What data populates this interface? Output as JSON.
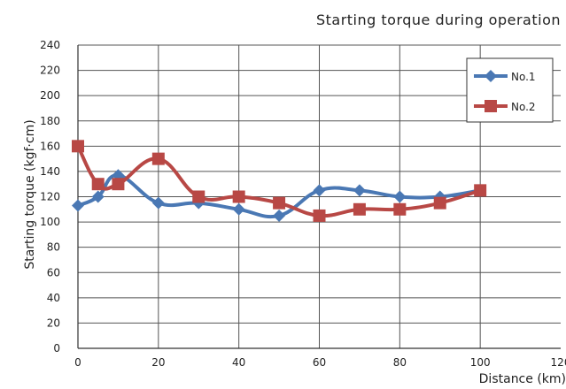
{
  "chart_data": {
    "type": "line",
    "title": "Starting torque during operation",
    "xlabel": "Distance (km)",
    "ylabel": "Starting torque (kgf·cm)",
    "xlim": [
      0,
      120
    ],
    "ylim": [
      0,
      240
    ],
    "x_ticks": [
      0,
      20,
      40,
      60,
      80,
      100,
      120
    ],
    "y_ticks": [
      0,
      20,
      40,
      60,
      80,
      100,
      120,
      140,
      160,
      180,
      200,
      220,
      240
    ],
    "grid": true,
    "legend_position": "top-right",
    "series": [
      {
        "name": "No.1",
        "color": "#4a78b4",
        "marker": "diamond",
        "x": [
          0,
          5,
          10,
          20,
          30,
          40,
          50,
          60,
          70,
          80,
          90,
          100
        ],
        "y": [
          113,
          120,
          137,
          115,
          115,
          110,
          105,
          125,
          125,
          120,
          120,
          125
        ]
      },
      {
        "name": "No.2",
        "color": "#b84845",
        "marker": "square",
        "x": [
          0,
          5,
          10,
          20,
          30,
          40,
          50,
          60,
          70,
          80,
          90,
          100
        ],
        "y": [
          160,
          130,
          130,
          150,
          120,
          120,
          115,
          105,
          110,
          110,
          115,
          125
        ]
      }
    ]
  }
}
